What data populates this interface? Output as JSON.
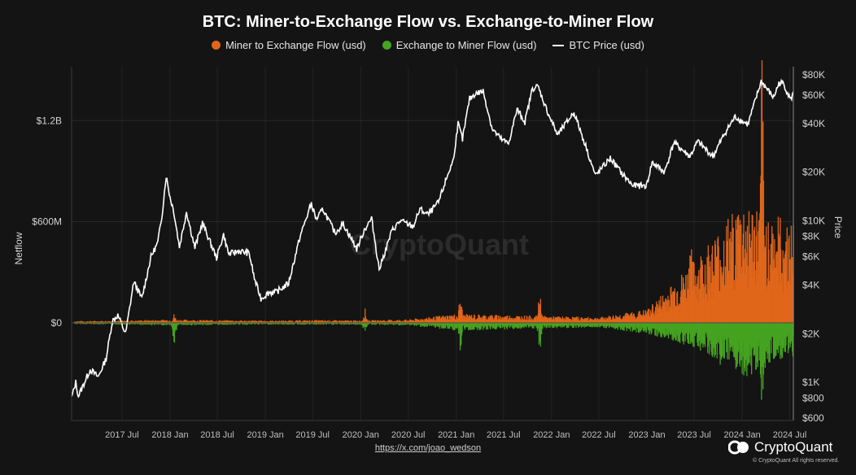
{
  "header": {
    "title": "BTC: Miner-to-Exchange Flow vs. Exchange-to-Miner Flow",
    "legend": [
      {
        "label": "Miner to Exchange Flow (usd)",
        "color": "#e0661b",
        "marker": "dot"
      },
      {
        "label": "Exchange to Miner Flow (usd)",
        "color": "#45a320",
        "marker": "dot"
      },
      {
        "label": "BTC Price (usd)",
        "color": "#ffffff",
        "marker": "line"
      }
    ]
  },
  "footer": {
    "link_text": "https://x.com/joao_wedson",
    "brand_name": "CryptoQuant",
    "copyright": "© CryptoQuant All rights reserved.",
    "watermark": "CryptoQuant"
  },
  "chart_data": {
    "type": "bar+line",
    "x_tick_labels": [
      "2017 Jul",
      "2018 Jan",
      "2018 Jul",
      "2019 Jan",
      "2019 Jul",
      "2020 Jan",
      "2020 Jul",
      "2021 Jan",
      "2021 Jul",
      "2022 Jan",
      "2022 Jul",
      "2023 Jan",
      "2023 Jul",
      "2024 Jan",
      "2024 Jul"
    ],
    "left_axis": {
      "label": "Netflow",
      "tick_labels": [
        "$1.2B",
        "$600M",
        "$0"
      ],
      "tick_values": [
        1200000000,
        600000000,
        0
      ],
      "range": [
        -580000000,
        1520000000
      ]
    },
    "right_axis": {
      "label": "Price",
      "scale": "log",
      "tick_labels": [
        "$80K",
        "$60K",
        "$40K",
        "$20K",
        "$10K",
        "$8K",
        "$6K",
        "$4K",
        "$2K",
        "$1K",
        "$800",
        "$600"
      ],
      "tick_values": [
        80000,
        60000,
        40000,
        20000,
        10000,
        8000,
        6000,
        4000,
        2000,
        1000,
        800,
        600
      ],
      "range": [
        580,
        90000
      ]
    },
    "x_range": [
      "2016-12-20",
      "2024-07-15"
    ],
    "grid": true,
    "legend_position": "top-center",
    "price_series": {
      "name": "BTC Price (usd)",
      "points": [
        [
          "2016-12-20",
          800
        ],
        [
          "2017-01-05",
          1000
        ],
        [
          "2017-01-15",
          820
        ],
        [
          "2017-03-01",
          1200
        ],
        [
          "2017-04-01",
          1080
        ],
        [
          "2017-05-01",
          1400
        ],
        [
          "2017-05-25",
          2400
        ],
        [
          "2017-06-15",
          2600
        ],
        [
          "2017-07-15",
          2000
        ],
        [
          "2017-08-15",
          4200
        ],
        [
          "2017-09-15",
          3300
        ],
        [
          "2017-10-20",
          6000
        ],
        [
          "2017-11-15",
          7300
        ],
        [
          "2017-12-01",
          10800
        ],
        [
          "2017-12-17",
          19000
        ],
        [
          "2018-01-01",
          14000
        ],
        [
          "2018-01-15",
          11500
        ],
        [
          "2018-02-06",
          6900
        ],
        [
          "2018-03-05",
          11400
        ],
        [
          "2018-04-06",
          6800
        ],
        [
          "2018-05-05",
          9700
        ],
        [
          "2018-06-28",
          5900
        ],
        [
          "2018-07-25",
          8200
        ],
        [
          "2018-08-14",
          6200
        ],
        [
          "2018-09-20",
          6500
        ],
        [
          "2018-10-31",
          6300
        ],
        [
          "2018-11-20",
          4400
        ],
        [
          "2018-12-15",
          3300
        ],
        [
          "2019-01-15",
          3600
        ],
        [
          "2019-02-10",
          3600
        ],
        [
          "2019-03-31",
          4100
        ],
        [
          "2019-05-14",
          8000
        ],
        [
          "2019-06-26",
          12800
        ],
        [
          "2019-07-15",
          10200
        ],
        [
          "2019-08-10",
          11800
        ],
        [
          "2019-09-25",
          8400
        ],
        [
          "2019-10-26",
          9600
        ],
        [
          "2019-12-17",
          6700
        ],
        [
          "2020-01-15",
          8800
        ],
        [
          "2020-02-12",
          10300
        ],
        [
          "2020-03-12",
          5000
        ],
        [
          "2020-04-30",
          8700
        ],
        [
          "2020-06-01",
          10000
        ],
        [
          "2020-07-20",
          9200
        ],
        [
          "2020-08-15",
          11800
        ],
        [
          "2020-09-15",
          10900
        ],
        [
          "2020-10-25",
          13000
        ],
        [
          "2020-11-30",
          19400
        ],
        [
          "2020-12-20",
          23500
        ],
        [
          "2021-01-08",
          40000
        ],
        [
          "2021-01-25",
          32000
        ],
        [
          "2021-02-21",
          57000
        ],
        [
          "2021-03-13",
          61000
        ],
        [
          "2021-04-14",
          63500
        ],
        [
          "2021-05-19",
          37000
        ],
        [
          "2021-06-22",
          32000
        ],
        [
          "2021-07-20",
          30000
        ],
        [
          "2021-08-22",
          49000
        ],
        [
          "2021-09-21",
          41000
        ],
        [
          "2021-10-20",
          66000
        ],
        [
          "2021-11-10",
          68000
        ],
        [
          "2021-12-15",
          48000
        ],
        [
          "2022-01-24",
          34000
        ],
        [
          "2022-03-28",
          47000
        ],
        [
          "2022-05-12",
          29000
        ],
        [
          "2022-06-18",
          19000
        ],
        [
          "2022-08-14",
          24400
        ],
        [
          "2022-09-30",
          19400
        ],
        [
          "2022-11-09",
          16500
        ],
        [
          "2022-12-31",
          16500
        ],
        [
          "2023-01-21",
          23000
        ],
        [
          "2023-03-10",
          20000
        ],
        [
          "2023-04-14",
          30500
        ],
        [
          "2023-06-15",
          25000
        ],
        [
          "2023-07-15",
          31000
        ],
        [
          "2023-09-11",
          25000
        ],
        [
          "2023-10-25",
          34500
        ],
        [
          "2023-12-05",
          44000
        ],
        [
          "2024-01-23",
          39500
        ],
        [
          "2024-03-14",
          73000
        ],
        [
          "2024-04-30",
          58000
        ],
        [
          "2024-05-21",
          71000
        ],
        [
          "2024-06-07",
          71000
        ],
        [
          "2024-07-05",
          56000
        ],
        [
          "2024-07-15",
          63000
        ]
      ]
    },
    "flow_series": {
      "inflow_name": "Miner to Exchange Flow (usd)",
      "outflow_name": "Exchange to Miner Flow (usd)",
      "monthly_typical_magnitude": [
        [
          "2017-01",
          8000000,
          -6000000
        ],
        [
          "2017-07",
          10000000,
          -8000000
        ],
        [
          "2018-01",
          15000000,
          -12000000
        ],
        [
          "2018-07",
          12000000,
          -10000000
        ],
        [
          "2019-01",
          10000000,
          -8000000
        ],
        [
          "2019-07",
          12000000,
          -9000000
        ],
        [
          "2020-01",
          11000000,
          -9000000
        ],
        [
          "2020-07",
          15000000,
          -12000000
        ],
        [
          "2021-01",
          40000000,
          -35000000
        ],
        [
          "2021-07",
          35000000,
          -30000000
        ],
        [
          "2022-01",
          30000000,
          -25000000
        ],
        [
          "2022-07",
          25000000,
          -20000000
        ],
        [
          "2023-01",
          60000000,
          -50000000
        ],
        [
          "2023-07",
          280000000,
          -110000000
        ],
        [
          "2024-01",
          550000000,
          -250000000
        ],
        [
          "2024-07",
          450000000,
          -150000000
        ]
      ],
      "peaks": [
        [
          "2018-01",
          45000000,
          -120000000
        ],
        [
          "2020-01",
          70000000,
          -60000000
        ],
        [
          "2021-01",
          150000000,
          -160000000
        ],
        [
          "2021-11",
          160000000,
          -170000000
        ],
        [
          "2023-06",
          580000000,
          -180000000
        ],
        [
          "2024-03",
          1400000000,
          -470000000
        ]
      ]
    }
  }
}
